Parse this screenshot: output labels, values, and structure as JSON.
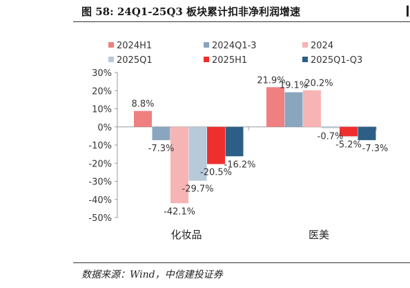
{
  "title": "图 58: 24Q1-25Q3 板块累计扣非净利润增速",
  "source": "数据来源：Wind，中信建投证券",
  "chart_data": {
    "type": "bar",
    "categories": [
      "化妆品",
      "医美"
    ],
    "series": [
      {
        "name": "2024H1",
        "color": "#f07f80",
        "values": [
          8.8,
          21.9
        ]
      },
      {
        "name": "2024Q1-3",
        "color": "#8aa5be",
        "values": [
          -7.3,
          19.1
        ]
      },
      {
        "name": "2024",
        "color": "#f7b4b4",
        "values": [
          -42.1,
          20.2
        ]
      },
      {
        "name": "2025Q1",
        "color": "#b8c9d9",
        "values": [
          -29.7,
          -0.7
        ]
      },
      {
        "name": "2025H1",
        "color": "#ef2e2e",
        "values": [
          -20.5,
          -5.2
        ]
      },
      {
        "name": "2025Q1-Q3",
        "color": "#2d5f86",
        "values": [
          -16.2,
          -7.3
        ]
      }
    ],
    "data_labels": [
      [
        "8.8%",
        "-7.3%",
        "-42.1%",
        "-29.7%",
        "-20.5%",
        "-16.2%"
      ],
      [
        "21.9%",
        "19.1%",
        "20.2%",
        "-0.7%",
        "-5.2%",
        "-7.3%"
      ]
    ],
    "ylim": [
      -50,
      30
    ],
    "yticks": [
      30,
      20,
      10,
      0,
      -10,
      -20,
      -30,
      -40,
      -50
    ],
    "ytick_labels": [
      "30%",
      "20%",
      "10%",
      "0%",
      "-10%",
      "-20%",
      "-30%",
      "-40%",
      "-50%"
    ],
    "legend_position": "top",
    "grid": false
  }
}
